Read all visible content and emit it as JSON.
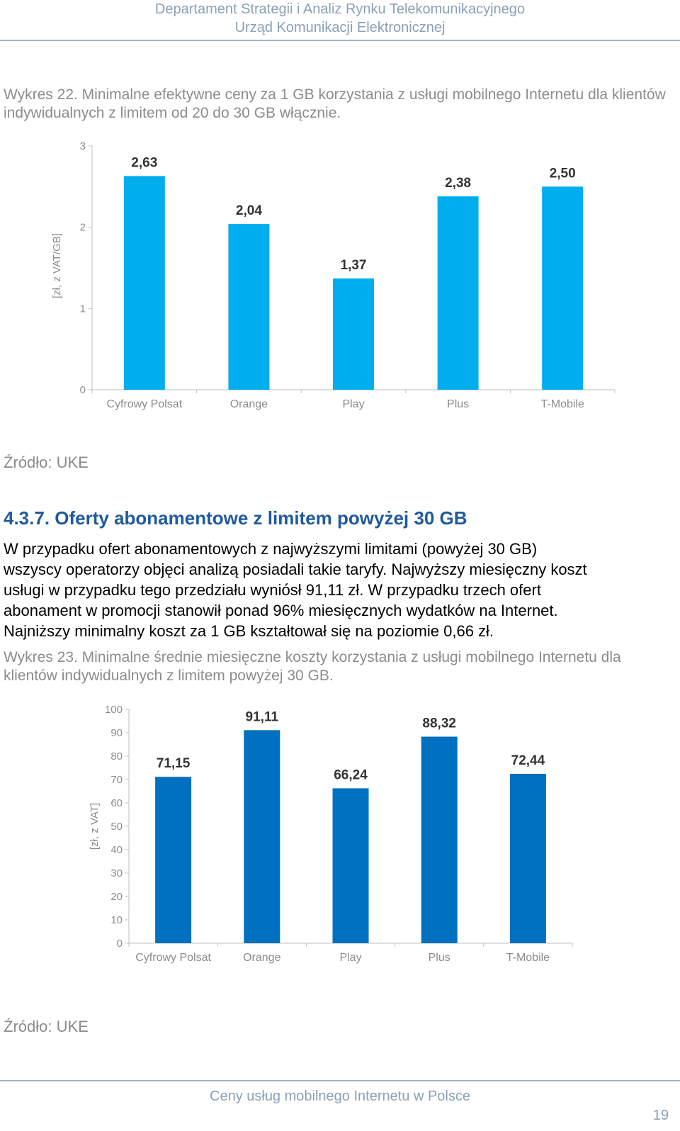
{
  "header": {
    "line1": "Departament Strategii i Analiz Rynku Telekomunikacyjnego",
    "line2": "Urząd Komunikacji Elektronicznej"
  },
  "chart1_caption": "Wykres 22. Minimalne efektywne ceny za 1 GB korzystania z usługi mobilnego Internetu dla klientów indywidualnych z limitem od 20 do 30 GB włącznie.",
  "source1": "Źródło: UKE",
  "section_heading": "4.3.7. Oferty abonamentowe z limitem powyżej 30 GB",
  "paragraph": [
    "W przypadku ofert abonamentowych z najwyższymi limitami (powyżej 30 GB)",
    "wszyscy operatorzy objęci analizą posiadali takie taryfy. Najwyższy miesięczny koszt",
    "usługi w przypadku tego przedziału wyniósł 91,11 zł. W przypadku trzech ofert",
    "abonament w promocji stanowił ponad 96% miesięcznych wydatków na Internet.",
    "Najniższy minimalny koszt za 1 GB kształtował się na poziomie 0,66 zł."
  ],
  "chart2_caption": "Wykres 23. Minimalne średnie miesięczne koszty korzystania z usługi mobilnego Internetu dla klientów indywidualnych z limitem powyżej 30 GB.",
  "source2": "Źródło: UKE",
  "footer": {
    "title": "Ceny usług mobilnego Internetu w Polsce",
    "page": "19"
  },
  "chart_data": [
    {
      "type": "bar",
      "title": "",
      "ylabel": "[zł, z VAT/GB]",
      "xlabel": "",
      "ylim": [
        0,
        3
      ],
      "yticks": [
        "0",
        "1",
        "2",
        "3"
      ],
      "categories": [
        "Cyfrowy Polsat",
        "Orange",
        "Play",
        "Plus",
        "T-Mobile"
      ],
      "values": [
        2.63,
        2.04,
        1.37,
        2.38,
        2.5
      ],
      "labels": [
        "2,63",
        "2,04",
        "1,37",
        "2,38",
        "2,50"
      ],
      "color": "#00aeef",
      "grid": false,
      "legend": "none"
    },
    {
      "type": "bar",
      "title": "",
      "ylabel": "[zł, z VAT]",
      "xlabel": "",
      "ylim": [
        0,
        100
      ],
      "yticks": [
        "0",
        "10",
        "20",
        "30",
        "40",
        "50",
        "60",
        "70",
        "80",
        "90",
        "100"
      ],
      "categories": [
        "Cyfrowy Polsat",
        "Orange",
        "Play",
        "Plus",
        "T-Mobile"
      ],
      "values": [
        71.15,
        91.11,
        66.24,
        88.32,
        72.44
      ],
      "labels": [
        "71,15",
        "91,11",
        "66,24",
        "88,32",
        "72,44"
      ],
      "color": "#0070c0",
      "grid": false,
      "legend": "none"
    }
  ]
}
